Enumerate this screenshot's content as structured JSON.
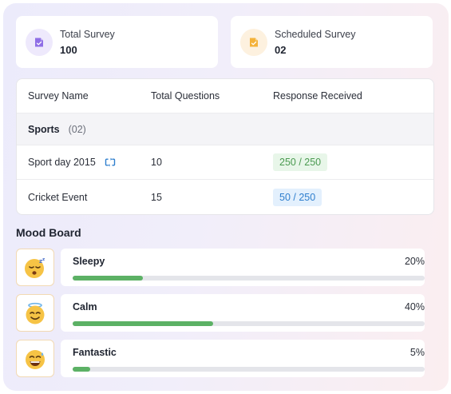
{
  "stats": {
    "total": {
      "label": "Total Survey",
      "value": "100",
      "icon": "survey-doc-icon",
      "color": "#8f6ee6"
    },
    "scheduled": {
      "label": "Scheduled Survey",
      "value": "02",
      "icon": "scheduled-doc-icon",
      "color": "#f4b23a"
    }
  },
  "table": {
    "headers": [
      "Survey Name",
      "Total Questions",
      "Response Received"
    ],
    "group": {
      "name": "Sports",
      "count": "(02)"
    },
    "rows": [
      {
        "name": "Sport day 2015",
        "questions": "10",
        "responses": "250 / 250",
        "status": "green",
        "has_sync_icon": true
      },
      {
        "name": "Cricket Event",
        "questions": "15",
        "responses": "50 / 250",
        "status": "blue",
        "has_sync_icon": false
      }
    ]
  },
  "mood_board": {
    "title": "Mood Board",
    "items": [
      {
        "label": "Sleepy",
        "percent_text": "20%",
        "value": 0.2,
        "emoji": "😴"
      },
      {
        "label": "Calm",
        "percent_text": "40%",
        "value": 0.4,
        "emoji": "😇"
      },
      {
        "label": "Fantastic",
        "percent_text": "5%",
        "value": 0.05,
        "emoji": "😅"
      }
    ]
  }
}
